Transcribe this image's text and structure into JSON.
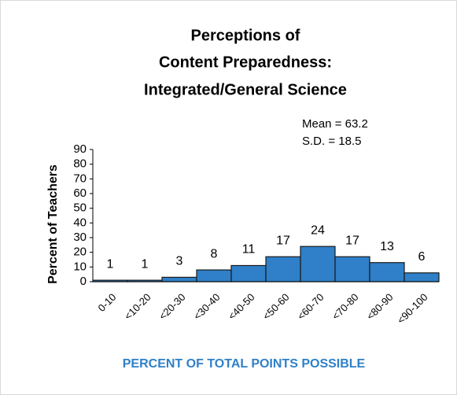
{
  "chart_data": {
    "type": "bar",
    "title": [
      "Perceptions of",
      "Content Preparedness:",
      "Integrated/General Science"
    ],
    "annotations": [
      "Mean = 63.2",
      "S.D. = 18.5"
    ],
    "y_label": "Percent of Teachers",
    "x_label": "PERCENT OF TOTAL POINTS POSSIBLE",
    "categories": [
      "0-10",
      "<10-20",
      "<20-30",
      "<30-40",
      "<40-50",
      "<50-60",
      "<60-70",
      "<70-80",
      "<80-90",
      "<90-100"
    ],
    "values": [
      1,
      1,
      3,
      8,
      11,
      17,
      24,
      17,
      13,
      6
    ],
    "color": "#2f80c8",
    "ylim": [
      0,
      90
    ],
    "yticks": [
      0,
      10,
      20,
      30,
      40,
      50,
      60,
      70,
      80,
      90
    ],
    "grid": false
  }
}
